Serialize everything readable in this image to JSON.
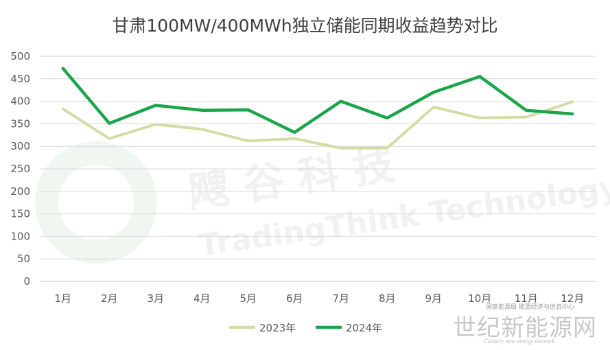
{
  "chart_data": {
    "type": "line",
    "title": "甘肃100MW/400MWh独立储能同期收益趋势对比",
    "categories": [
      "1月",
      "2月",
      "3月",
      "4月",
      "5月",
      "6月",
      "7月",
      "8月",
      "9月",
      "10月",
      "11月",
      "12月"
    ],
    "ylim": [
      0,
      500
    ],
    "yticks": [
      0,
      50,
      100,
      150,
      200,
      250,
      300,
      350,
      400,
      450,
      500
    ],
    "grid": true,
    "legend_position": "bottom",
    "series": [
      {
        "name": "2023年",
        "color": "#d3dca3",
        "values": [
          383,
          317,
          349,
          338,
          312,
          317,
          296,
          296,
          387,
          363,
          365,
          399
        ]
      },
      {
        "name": "2024年",
        "color": "#1aa54a",
        "values": [
          473,
          351,
          391,
          380,
          381,
          331,
          400,
          363,
          420,
          455,
          380,
          372
        ]
      }
    ]
  },
  "watermarks": {
    "bg_cn": "飕 谷 科 技",
    "bg_en": "TradingThink Technology",
    "brand": "世纪新能源网",
    "brand_en": "Century new energy network",
    "brand_tag": "国家能源局 能源经济与信息中心"
  }
}
